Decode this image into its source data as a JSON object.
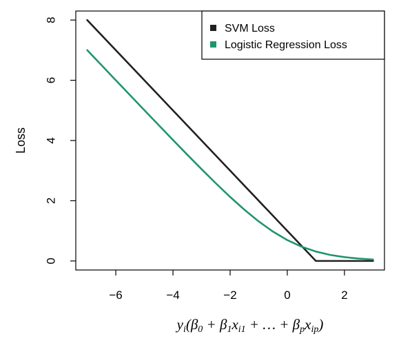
{
  "chart_data": {
    "type": "line",
    "title": "",
    "xlabel": "y_i(β_0 + β_1x_{i1} + … + β_px_{ip})",
    "ylabel": "Loss",
    "xlim": [
      -7.4,
      3.4
    ],
    "ylim": [
      -0.3,
      8.3
    ],
    "xticks": [
      -6,
      -4,
      -2,
      0,
      2
    ],
    "xtick_labels": [
      "−6",
      "−4",
      "−2",
      "0",
      "2"
    ],
    "yticks": [
      0,
      2,
      4,
      6,
      8
    ],
    "ytick_labels": [
      "0",
      "2",
      "4",
      "6",
      "8"
    ],
    "grid": false,
    "legend_position": "top-right",
    "series": [
      {
        "name": "SVM Loss",
        "color": "#231f20",
        "x": [
          -7,
          1,
          3
        ],
        "y": [
          8,
          0,
          0
        ]
      },
      {
        "name": "Logistic Regression Loss",
        "color": "#1e9470",
        "x": [
          -7,
          -6.5,
          -6,
          -5.5,
          -5,
          -4.5,
          -4,
          -3.5,
          -3,
          -2.5,
          -2,
          -1.5,
          -1,
          -0.5,
          0,
          0.5,
          1,
          1.5,
          2,
          2.5,
          3
        ],
        "y": [
          7.001,
          6.502,
          6.002,
          5.504,
          5.007,
          4.511,
          4.018,
          3.53,
          3.049,
          2.579,
          2.127,
          1.701,
          1.313,
          0.974,
          0.693,
          0.474,
          0.313,
          0.201,
          0.127,
          0.079,
          0.049
        ]
      }
    ]
  }
}
